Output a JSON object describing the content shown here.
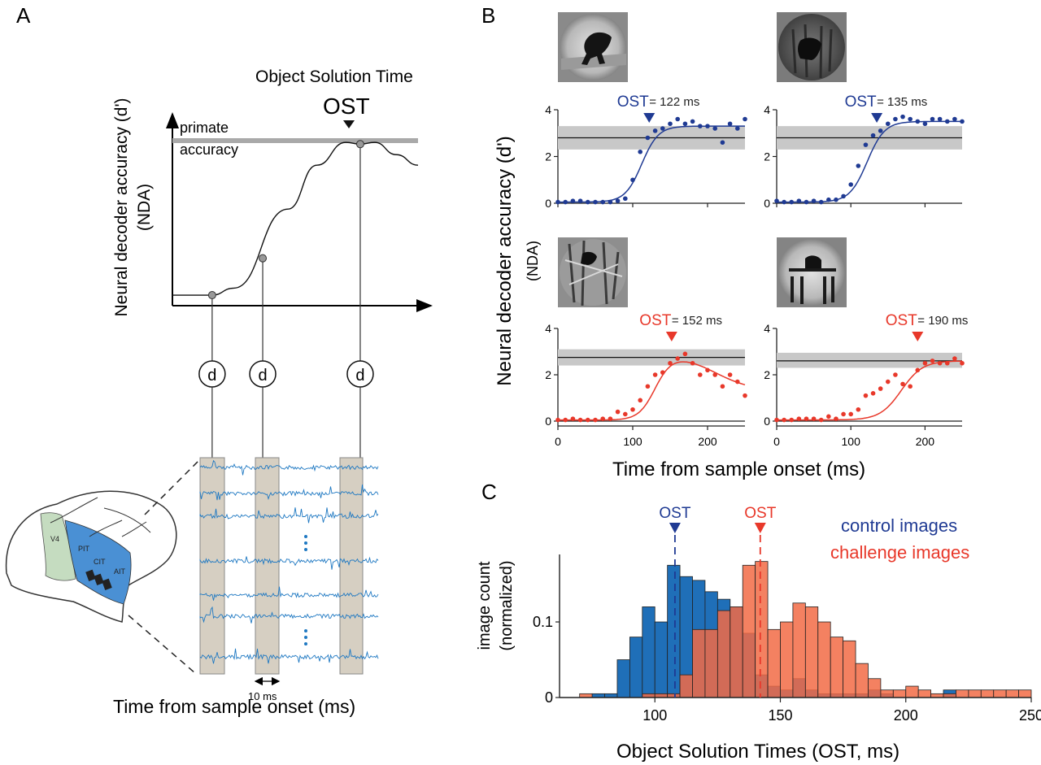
{
  "panels": {
    "a": "A",
    "b": "B",
    "c": "C"
  },
  "panel_a": {
    "title": "Object Solution Time",
    "ost_label": "OST",
    "ylabel_line1": "Neural decoder accuracy (d')",
    "ylabel_line2": "(NDA)",
    "primate_line1": "primate",
    "primate_line2": "accuracy",
    "decoder_symbol": "d",
    "region_labels": [
      "V4",
      "PIT",
      "CIT",
      "AIT"
    ],
    "scale_label": "10 ms",
    "xlabel": "Time from sample onset (ms)"
  },
  "panel_b": {
    "ylabel_line1": "Neural decoder accuracy (d')",
    "ylabel_line2": "(NDA)",
    "xlabel": "Time from sample onset (ms)",
    "ost_word": "OST"
  },
  "panel_c": {
    "ylabel_line1": "image count",
    "ylabel_line2": "(normalized)",
    "xlabel": "Object Solution Times (OST, ms)",
    "ost_word": "OST",
    "legend": [
      "control images",
      "challenge images"
    ]
  },
  "colors": {
    "control": "#1f3a93",
    "challenge": "#e8382a",
    "control_bar": "#1f6fb8",
    "challenge_bar": "#f26b45",
    "trace": "#1e78c2",
    "band": "#c8c8c8",
    "window": "#d6cfc2",
    "it_region": "#4a90d4",
    "v4_region": "#c5dcc0"
  },
  "chart_data": [
    {
      "type": "line",
      "panel": "A",
      "title": "Object Solution Time",
      "ylabel": "Neural decoder accuracy (d') (NDA)",
      "xlabel": "Time from sample onset (ms)",
      "note": "schematic, no tick values",
      "series": [
        {
          "name": "",
          "points": [
            [
              0,
              0.06
            ],
            [
              0.3,
              0.06
            ],
            [
              0.55,
              0.06
            ],
            [
              0.85,
              0.1
            ],
            [
              1.6,
              0.55
            ],
            [
              2.0,
              0.8
            ],
            [
              2.4,
              0.93
            ],
            [
              2.6,
              0.92
            ],
            [
              2.8,
              0.93
            ],
            [
              3.1,
              0.86
            ],
            [
              3.4,
              0.8
            ]
          ]
        }
      ],
      "reference_label": "primate accuracy",
      "reference_level": 0.92,
      "ost_x": 2.6,
      "decoder_points_x": [
        0.55,
        1.25,
        2.6
      ]
    },
    {
      "type": "scatter",
      "panel": "B",
      "ost_label": "= 122 ms",
      "ost_ms": 122,
      "color": "control",
      "ylim": [
        0,
        4
      ],
      "xlim": [
        0,
        250
      ],
      "yticks": [
        0,
        2,
        4
      ],
      "primate_band": [
        2.3,
        3.3
      ],
      "primate_mean": 2.8,
      "fit": {
        "base": 0.05,
        "top": 3.3,
        "mid": 112,
        "k": 0.09,
        "drop": 0
      },
      "points": [
        [
          0,
          0.05
        ],
        [
          10,
          0.05
        ],
        [
          20,
          0.1
        ],
        [
          30,
          0.1
        ],
        [
          40,
          0.05
        ],
        [
          50,
          0.05
        ],
        [
          60,
          0.05
        ],
        [
          70,
          0.05
        ],
        [
          80,
          0.1
        ],
        [
          90,
          0.2
        ],
        [
          100,
          1.0
        ],
        [
          110,
          2.2
        ],
        [
          120,
          2.8
        ],
        [
          130,
          3.1
        ],
        [
          140,
          3.2
        ],
        [
          150,
          3.4
        ],
        [
          160,
          3.6
        ],
        [
          170,
          3.4
        ],
        [
          180,
          3.5
        ],
        [
          190,
          3.3
        ],
        [
          200,
          3.3
        ],
        [
          210,
          3.2
        ],
        [
          220,
          2.6
        ],
        [
          230,
          3.4
        ],
        [
          240,
          3.2
        ],
        [
          250,
          3.6
        ]
      ]
    },
    {
      "type": "scatter",
      "panel": "B",
      "ost_label": "= 135 ms",
      "ost_ms": 135,
      "color": "control",
      "ylim": [
        0,
        4
      ],
      "xlim": [
        0,
        250
      ],
      "yticks": [
        0,
        2,
        4
      ],
      "primate_band": [
        2.3,
        3.3
      ],
      "primate_mean": 2.8,
      "fit": {
        "base": 0.05,
        "top": 3.5,
        "mid": 122,
        "k": 0.085,
        "drop": 0
      },
      "points": [
        [
          0,
          0.1
        ],
        [
          10,
          0.05
        ],
        [
          20,
          0.05
        ],
        [
          30,
          0.1
        ],
        [
          40,
          0.05
        ],
        [
          50,
          0.1
        ],
        [
          60,
          0.05
        ],
        [
          70,
          0.15
        ],
        [
          80,
          0.15
        ],
        [
          90,
          0.3
        ],
        [
          100,
          0.8
        ],
        [
          110,
          1.6
        ],
        [
          120,
          2.5
        ],
        [
          130,
          2.9
        ],
        [
          140,
          3.1
        ],
        [
          150,
          3.4
        ],
        [
          160,
          3.6
        ],
        [
          170,
          3.7
        ],
        [
          180,
          3.6
        ],
        [
          190,
          3.5
        ],
        [
          200,
          3.4
        ],
        [
          210,
          3.6
        ],
        [
          220,
          3.6
        ],
        [
          230,
          3.5
        ],
        [
          240,
          3.6
        ],
        [
          250,
          3.5
        ]
      ]
    },
    {
      "type": "scatter",
      "panel": "B",
      "ost_label": "= 152 ms",
      "ost_ms": 152,
      "color": "challenge",
      "ylim": [
        0,
        4
      ],
      "xlim": [
        0,
        250
      ],
      "yticks": [
        0,
        2,
        4
      ],
      "xticks": [
        0,
        100,
        200
      ],
      "primate_band": [
        2.4,
        3.1
      ],
      "primate_mean": 2.75,
      "fit": {
        "base": 0.05,
        "top": 2.9,
        "mid": 130,
        "k": 0.09,
        "drop": 1.6,
        "drop_mid": 210,
        "drop_k": 0.04
      },
      "points": [
        [
          0,
          0.05
        ],
        [
          10,
          0.05
        ],
        [
          20,
          0.1
        ],
        [
          30,
          0.05
        ],
        [
          40,
          0.05
        ],
        [
          50,
          0.05
        ],
        [
          60,
          0.1
        ],
        [
          70,
          0.1
        ],
        [
          80,
          0.4
        ],
        [
          90,
          0.3
        ],
        [
          100,
          0.5
        ],
        [
          110,
          0.9
        ],
        [
          120,
          1.5
        ],
        [
          130,
          2.0
        ],
        [
          140,
          2.1
        ],
        [
          150,
          2.5
        ],
        [
          160,
          2.7
        ],
        [
          170,
          2.9
        ],
        [
          180,
          2.5
        ],
        [
          190,
          2.0
        ],
        [
          200,
          2.2
        ],
        [
          210,
          2.0
        ],
        [
          220,
          1.5
        ],
        [
          230,
          2.0
        ],
        [
          240,
          1.7
        ],
        [
          250,
          1.1
        ]
      ]
    },
    {
      "type": "scatter",
      "panel": "B",
      "ost_label": "= 190 ms",
      "ost_ms": 190,
      "color": "challenge",
      "ylim": [
        0,
        4
      ],
      "xlim": [
        0,
        250
      ],
      "yticks": [
        0,
        2,
        4
      ],
      "xticks": [
        0,
        100,
        200
      ],
      "primate_band": [
        2.3,
        2.95
      ],
      "primate_mean": 2.6,
      "fit": {
        "base": 0.05,
        "top": 2.6,
        "mid": 168,
        "k": 0.07,
        "drop": 0
      },
      "points": [
        [
          0,
          0.05
        ],
        [
          10,
          0.05
        ],
        [
          20,
          0.05
        ],
        [
          30,
          0.1
        ],
        [
          40,
          0.1
        ],
        [
          50,
          0.1
        ],
        [
          60,
          0.05
        ],
        [
          70,
          0.2
        ],
        [
          80,
          0.1
        ],
        [
          90,
          0.3
        ],
        [
          100,
          0.3
        ],
        [
          110,
          0.5
        ],
        [
          120,
          1.1
        ],
        [
          130,
          1.2
        ],
        [
          140,
          1.4
        ],
        [
          150,
          1.7
        ],
        [
          160,
          2.0
        ],
        [
          170,
          1.6
        ],
        [
          180,
          1.5
        ],
        [
          190,
          2.2
        ],
        [
          200,
          2.5
        ],
        [
          210,
          2.6
        ],
        [
          220,
          2.5
        ],
        [
          230,
          2.5
        ],
        [
          240,
          2.7
        ],
        [
          250,
          2.5
        ]
      ]
    },
    {
      "type": "bar",
      "panel": "C",
      "xlabel": "Object Solution Times (OST, ms)",
      "ylabel": "image count (normalized)",
      "xlim": [
        62,
        250
      ],
      "ylim": [
        0,
        0.185
      ],
      "xticks": [
        100,
        150,
        200,
        250
      ],
      "yticks": [
        0,
        0.1
      ],
      "ytick_labels": [
        "0",
        "0.1"
      ],
      "bin_width": 5,
      "series": [
        {
          "name": "control images",
          "bins_start": [
            75,
            80,
            85,
            90,
            95,
            100,
            105,
            110,
            115,
            120,
            125,
            130,
            135,
            140,
            145,
            150,
            155,
            160,
            165,
            170,
            175,
            180,
            185,
            190,
            195,
            200,
            205,
            210,
            215
          ],
          "values": [
            0.005,
            0.005,
            0.05,
            0.08,
            0.12,
            0.1,
            0.175,
            0.16,
            0.155,
            0.14,
            0.13,
            0.12,
            0.085,
            0.03,
            0.015,
            0.01,
            0.025,
            0.01,
            0.005,
            0.005,
            0.005,
            0.005,
            0.01,
            0.005,
            0,
            0,
            0,
            0,
            0.01
          ]
        },
        {
          "name": "challenge images",
          "bins_start": [
            70,
            75,
            80,
            85,
            90,
            95,
            100,
            105,
            110,
            115,
            120,
            125,
            130,
            135,
            140,
            145,
            150,
            155,
            160,
            165,
            170,
            175,
            180,
            185,
            190,
            195,
            200,
            205,
            210,
            215,
            220,
            225,
            230,
            235,
            240,
            245
          ],
          "values": [
            0.005,
            0,
            0,
            0,
            0,
            0.005,
            0.005,
            0.005,
            0.03,
            0.09,
            0.09,
            0.115,
            0.12,
            0.175,
            0.18,
            0.09,
            0.1,
            0.125,
            0.12,
            0.1,
            0.08,
            0.075,
            0.045,
            0.025,
            0.01,
            0.01,
            0.015,
            0.01,
            0.005,
            0.005,
            0.01,
            0.01,
            0.01,
            0.01,
            0.01,
            0.01
          ]
        }
      ],
      "ost_markers": [
        {
          "series": "control images",
          "x": 108
        },
        {
          "series": "challenge images",
          "x": 142
        }
      ]
    }
  ]
}
